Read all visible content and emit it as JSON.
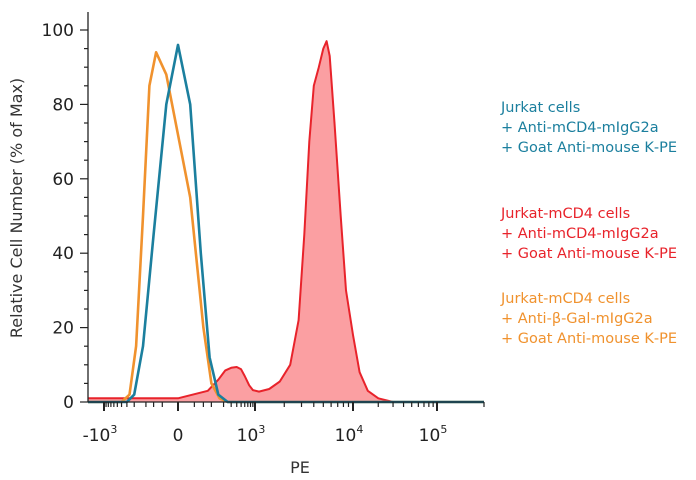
{
  "chart_data": {
    "type": "area",
    "xlabel": "PE",
    "ylabel": "Relative Cell Number (% of Max)",
    "ylim": [
      0,
      100
    ],
    "xscale": "biexponential (log above 10^3, linear near 0)",
    "yticks": [
      0,
      20,
      40,
      60,
      80,
      100
    ],
    "xticks": [
      {
        "value": -1000,
        "base": "-10",
        "exp": "3"
      },
      {
        "value": 0,
        "base": "0",
        "exp": ""
      },
      {
        "value": 1000,
        "base": "10",
        "exp": "3"
      },
      {
        "value": 10000,
        "base": "10",
        "exp": "4"
      },
      {
        "value": 100000,
        "base": "10",
        "exp": "5"
      }
    ],
    "grid": false,
    "legend_position": "right",
    "series": [
      {
        "name": "Jurkat cells + Anti-mCD4-mIgG2a + Goat Anti-mouse Κ-PE",
        "legend_lines": [
          "Jurkat cells",
          "+ Anti-mCD4-mIgG2a",
          "+ Goat Anti-mouse Κ-PE"
        ],
        "color": "#1b7f9e",
        "fill": false,
        "points": [
          [
            -2000,
            0
          ],
          [
            -300,
            0
          ],
          [
            -200,
            2
          ],
          [
            -120,
            15
          ],
          [
            -60,
            45
          ],
          [
            -20,
            80
          ],
          [
            0,
            96
          ],
          [
            20,
            80
          ],
          [
            50,
            40
          ],
          [
            90,
            12
          ],
          [
            150,
            2
          ],
          [
            250,
            0
          ],
          [
            200000,
            0
          ]
        ]
      },
      {
        "name": "Jurkat-mCD4 cells + Anti-mCD4-mIgG2a + Goat Anti-mouse Κ-PE",
        "legend_lines": [
          "Jurkat-mCD4 cells",
          "+ Anti-mCD4-mIgG2a",
          "+ Goat Anti-mouse Κ-PE"
        ],
        "color": "#e8232b",
        "fill": true,
        "fill_color": "#fb9fa2",
        "points": [
          [
            -2000,
            1
          ],
          [
            -300,
            1
          ],
          [
            0,
            1
          ],
          [
            80,
            3
          ],
          [
            150,
            6
          ],
          [
            220,
            8.5
          ],
          [
            300,
            9.2
          ],
          [
            400,
            9.4
          ],
          [
            500,
            8.8
          ],
          [
            600,
            7
          ],
          [
            750,
            4.5
          ],
          [
            900,
            3.2
          ],
          [
            1100,
            2.8
          ],
          [
            1400,
            3.5
          ],
          [
            1800,
            5.5
          ],
          [
            2300,
            10
          ],
          [
            2800,
            22
          ],
          [
            3200,
            45
          ],
          [
            3600,
            70
          ],
          [
            4000,
            85
          ],
          [
            4500,
            90
          ],
          [
            5000,
            95
          ],
          [
            5400,
            97
          ],
          [
            5800,
            93
          ],
          [
            6500,
            75
          ],
          [
            7500,
            50
          ],
          [
            8500,
            30
          ],
          [
            10000,
            18
          ],
          [
            12000,
            8
          ],
          [
            15000,
            3
          ],
          [
            20000,
            1
          ],
          [
            30000,
            0
          ],
          [
            200000,
            0
          ]
        ]
      },
      {
        "name": "Jurkat-mCD4 cells + Anti-β-Gal-mIgG2a + Goat Anti-mouse Κ-PE",
        "legend_lines": [
          "Jurkat-mCD4 cells",
          "+ Anti-β-Gal-mIgG2a",
          "+ Goat Anti-mouse Κ-PE"
        ],
        "color": "#f0922e",
        "fill": false,
        "points": [
          [
            -2000,
            0
          ],
          [
            -400,
            0
          ],
          [
            -260,
            2
          ],
          [
            -180,
            15
          ],
          [
            -120,
            50
          ],
          [
            -80,
            85
          ],
          [
            -50,
            94
          ],
          [
            -20,
            88
          ],
          [
            20,
            55
          ],
          [
            60,
            20
          ],
          [
            100,
            5
          ],
          [
            160,
            1
          ],
          [
            250,
            0
          ],
          [
            200000,
            0
          ]
        ]
      }
    ]
  }
}
